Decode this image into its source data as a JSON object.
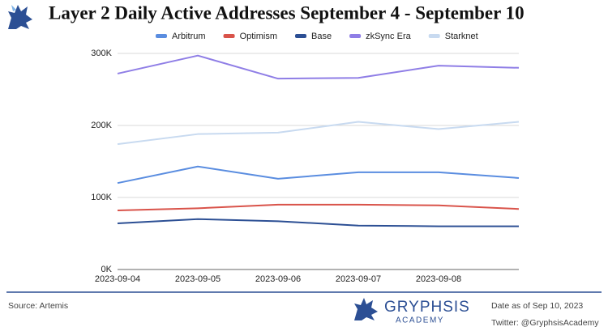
{
  "chart_data": {
    "type": "line",
    "title": "Layer 2 Daily Active Addresses September 4 - September 10",
    "categories": [
      "2023-09-04",
      "2023-09-05",
      "2023-09-06",
      "2023-09-07",
      "2023-09-08",
      null
    ],
    "series": [
      {
        "name": "Arbitrum",
        "color": "#5a8de0",
        "values": [
          120000,
          143000,
          126000,
          135000,
          135000,
          127000
        ]
      },
      {
        "name": "Optimism",
        "color": "#d9534a",
        "values": [
          82000,
          85000,
          90000,
          90000,
          89000,
          84000
        ]
      },
      {
        "name": "Base",
        "color": "#2c4f94",
        "values": [
          64000,
          70000,
          67000,
          61000,
          60000,
          60000
        ]
      },
      {
        "name": "zkSync Era",
        "color": "#8f7ee6",
        "values": [
          272000,
          297000,
          265000,
          266000,
          283000,
          280000
        ]
      },
      {
        "name": "Starknet",
        "color": "#c8daf0",
        "values": [
          174000,
          188000,
          190000,
          205000,
          195000,
          205000
        ]
      }
    ],
    "ylim": [
      0,
      300000
    ],
    "yticks": [
      {
        "value": 0,
        "label": "0K"
      },
      {
        "value": 100000,
        "label": "100K"
      },
      {
        "value": 200000,
        "label": "200K"
      },
      {
        "value": 300000,
        "label": "300K"
      }
    ],
    "grid": true,
    "legend": "top"
  },
  "footer": {
    "source": "Source: Artemis",
    "brand": "GRYPHSIS",
    "brand_sub": "ACADEMY",
    "date": "Date as of  Sep 10, 2023",
    "twitter": "Twitter: @GryphsisAcademy"
  }
}
